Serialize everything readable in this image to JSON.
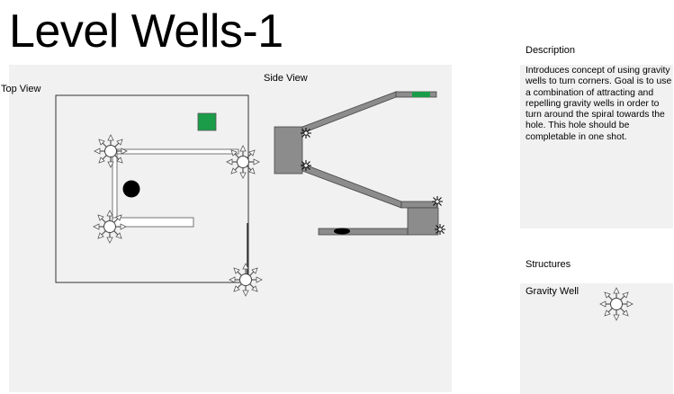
{
  "title": "Level Wells-1",
  "views": {
    "top_view_label": "Top View",
    "side_view_label": "Side View"
  },
  "description": {
    "heading": "Description",
    "text": "Introduces concept of using gravity wells to turn corners. Goal is to use a combination of attracting and repelling gravity wells in order to turn around the spiral towards the hole. This hole should be completable in one shot."
  },
  "structures": {
    "heading": "Structures",
    "items": [
      {
        "label": "Gravity Well",
        "icon": "gravity-well-icon"
      }
    ]
  },
  "colors": {
    "goal_green": "#1a9c48",
    "ball_black": "#000000",
    "wall_gray": "#8c8c8c",
    "panel_gray": "#f1f1f1"
  }
}
